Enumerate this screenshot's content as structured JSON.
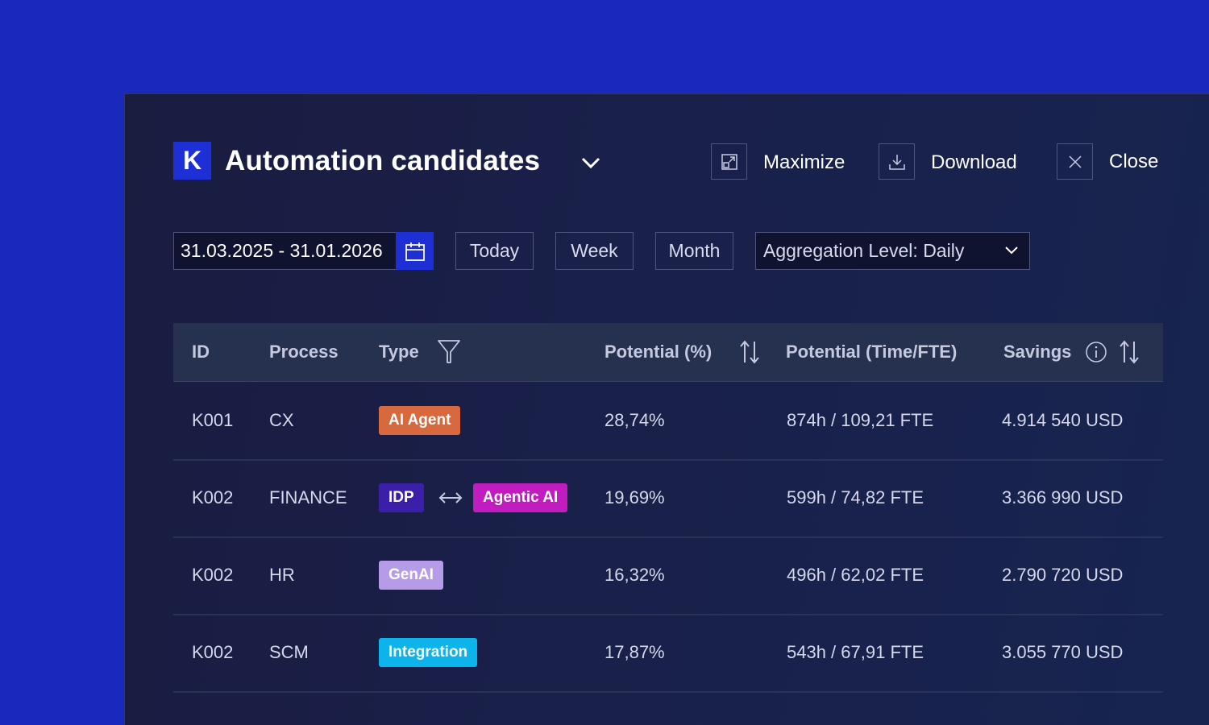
{
  "app": {
    "logo_letter": "K"
  },
  "header": {
    "title": "Automation candidates",
    "maximize_label": "Maximize",
    "download_label": "Download",
    "close_label": "Close"
  },
  "filters": {
    "date_range": "31.03.2025 - 31.01.2026",
    "today_label": "Today",
    "week_label": "Week",
    "month_label": "Month",
    "aggregation_label": "Aggregation Level: Daily"
  },
  "table": {
    "columns": [
      "ID",
      "Process",
      "Type",
      "Potential (%)",
      "Potential (Time/FTE)",
      "Savings"
    ],
    "rows": [
      {
        "id": "K001",
        "process": "CX",
        "types": [
          "AI Agent"
        ],
        "potential_pct": "28,74%",
        "potential_time": "874h / 109,21 FTE",
        "savings": "4.914 540 USD"
      },
      {
        "id": "K002",
        "process": "FINANCE",
        "types": [
          "IDP",
          "Agentic AI"
        ],
        "potential_pct": "19,69%",
        "potential_time": "599h / 74,82 FTE",
        "savings": "3.366 990 USD"
      },
      {
        "id": "K002",
        "process": "HR",
        "types": [
          "GenAI"
        ],
        "potential_pct": "16,32%",
        "potential_time": "496h / 62,02 FTE",
        "savings": "2.790 720 USD"
      },
      {
        "id": "K002",
        "process": "SCM",
        "types": [
          "Integration"
        ],
        "potential_pct": "17,87%",
        "potential_time": "543h / 67,91 FTE",
        "savings": "3.055 770 USD"
      }
    ]
  },
  "colors": {
    "background": "#1a28bb",
    "accent": "#1e2fd6",
    "tag_ai_agent": "#d8683d",
    "tag_idp": "#3b1fa8",
    "tag_agentic_ai": "#c21bc0",
    "tag_genai": "#b59be8",
    "tag_integration": "#0db4ec"
  },
  "icons": {
    "header": [
      "chevron-down-icon",
      "maximize-icon",
      "download-icon",
      "close-icon"
    ],
    "filters": [
      "calendar-icon",
      "chevron-down-icon"
    ],
    "table": [
      "filter-icon",
      "sort-icon",
      "info-icon",
      "swap-arrows-icon"
    ]
  }
}
